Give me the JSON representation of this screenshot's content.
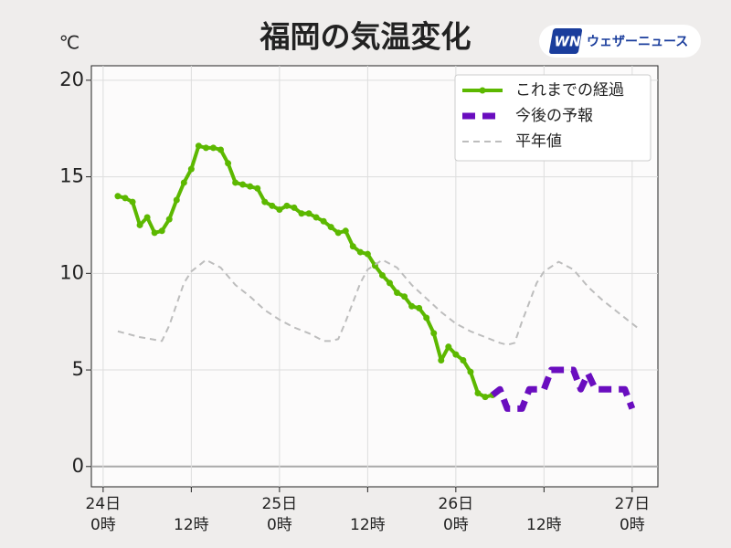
{
  "chart_data": {
    "type": "line",
    "title": "福岡の気温変化",
    "unit": "℃",
    "brand": {
      "logo": "WN",
      "name": "ウェザーニュース"
    },
    "xlim": [
      -1.6,
      75.5
    ],
    "ylim": [
      -1.05,
      20.75
    ],
    "yticks": [
      0,
      5,
      10,
      15,
      20
    ],
    "xticks": [
      {
        "value": 0,
        "label": "0時"
      },
      {
        "value": 12,
        "label": "12時"
      },
      {
        "value": 24,
        "label": "0時"
      },
      {
        "value": 36,
        "label": "12時"
      },
      {
        "value": 48,
        "label": "0時"
      },
      {
        "value": 60,
        "label": "12時"
      },
      {
        "value": 72,
        "label": "0時"
      }
    ],
    "xtick_dates": [
      {
        "value": 0,
        "label": "24日"
      },
      {
        "value": 24,
        "label": "25日"
      },
      {
        "value": 48,
        "label": "26日"
      },
      {
        "value": 72,
        "label": "27日"
      }
    ],
    "grid": true,
    "legend": "upper right",
    "series": [
      {
        "name": "これまでの経過",
        "color": "#5cb800",
        "linestyle": "solid",
        "marker": true,
        "x": [
          2,
          3,
          4,
          5,
          6,
          7,
          8,
          9,
          10,
          11,
          12,
          13,
          14,
          15,
          16,
          17,
          18,
          19,
          20,
          21,
          22,
          23,
          24,
          25,
          26,
          27,
          28,
          29,
          30,
          31,
          32,
          33,
          34,
          35,
          36,
          37,
          38,
          39,
          40,
          41,
          42,
          43,
          44,
          45,
          46,
          47,
          48,
          49,
          50,
          51,
          52,
          53
        ],
        "values": [
          14.0,
          13.9,
          13.7,
          12.5,
          12.9,
          12.1,
          12.2,
          12.8,
          13.8,
          14.7,
          15.4,
          16.6,
          16.5,
          16.5,
          16.4,
          15.7,
          14.7,
          14.6,
          14.5,
          14.4,
          13.7,
          13.5,
          13.3,
          13.5,
          13.4,
          13.1,
          13.1,
          12.9,
          12.7,
          12.4,
          12.1,
          12.2,
          11.4,
          11.1,
          11.0,
          10.4,
          9.9,
          9.5,
          9.0,
          8.8,
          8.3,
          8.2,
          7.7,
          6.9,
          5.5,
          6.2,
          5.8,
          5.5,
          4.9,
          3.8,
          3.6,
          3.7
        ]
      },
      {
        "name": "今後の予報",
        "color": "#6a0dbf",
        "linestyle": "dashed",
        "marker": false,
        "x": [
          53,
          54,
          55,
          56,
          57,
          58,
          59,
          60,
          61,
          62,
          63,
          64,
          65,
          66,
          67,
          68,
          69,
          70,
          71,
          72
        ],
        "values": [
          3.7,
          4.0,
          3.0,
          3.0,
          3.0,
          4.0,
          4.0,
          4.0,
          5.0,
          5.0,
          5.0,
          5.0,
          4.0,
          4.8,
          4.0,
          4.0,
          4.0,
          4.0,
          4.0,
          3.0
        ]
      },
      {
        "name": "平年値",
        "color": "#bdbdbd",
        "linestyle": "dotted",
        "marker": false,
        "x": [
          2,
          5,
          8,
          9,
          11,
          12,
          14,
          16,
          18,
          20,
          22,
          24,
          26,
          28,
          30,
          31,
          32,
          33,
          35,
          36,
          38,
          40,
          42,
          44,
          46,
          48,
          50,
          52,
          54,
          55,
          56,
          57,
          59,
          60,
          62,
          64,
          66,
          68,
          70,
          72,
          73
        ],
        "values": [
          7.0,
          6.7,
          6.5,
          7.3,
          9.5,
          10.1,
          10.7,
          10.3,
          9.4,
          8.8,
          8.1,
          7.6,
          7.2,
          6.9,
          6.5,
          6.5,
          6.6,
          7.5,
          9.5,
          10.2,
          10.7,
          10.3,
          9.4,
          8.7,
          8.0,
          7.4,
          7.0,
          6.7,
          6.4,
          6.3,
          6.4,
          7.5,
          9.5,
          10.1,
          10.6,
          10.2,
          9.3,
          8.6,
          8.0,
          7.4,
          7.1
        ]
      }
    ]
  }
}
